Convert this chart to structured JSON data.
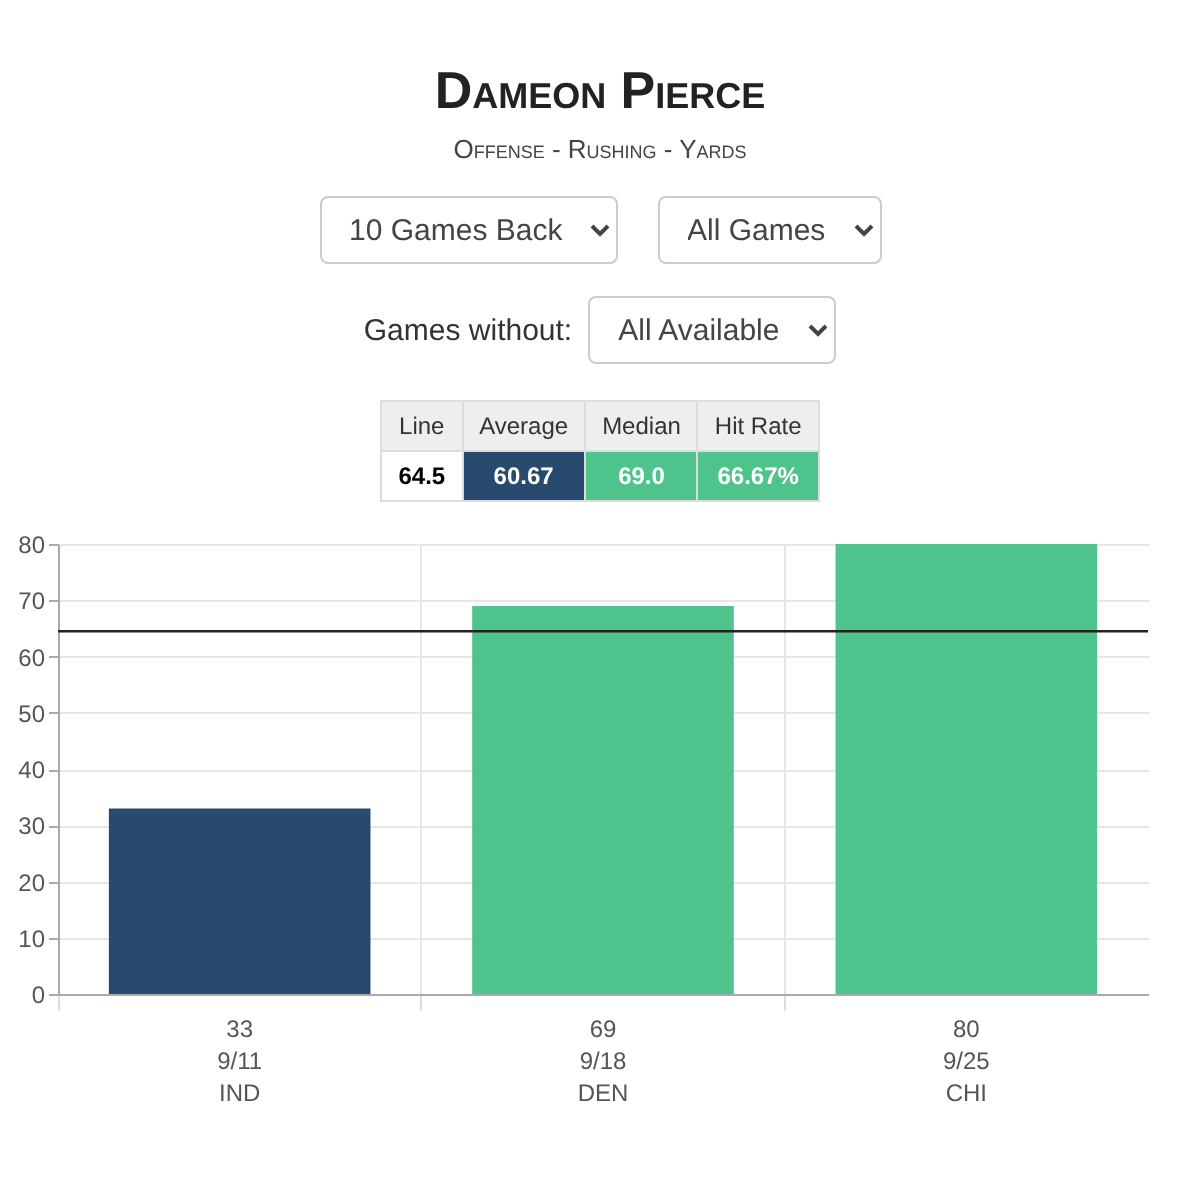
{
  "chart_data": {
    "type": "bar",
    "title": "Dameon Pierce",
    "subtitle": "Offense - Rushing - Yards",
    "annotations": [
      "10 Games Back",
      "All Games",
      "Games without:",
      "All Available",
      "Line",
      "Average",
      "Median",
      "Hit Rate",
      "64.5",
      "60.67",
      "69.0",
      "66.67%"
    ],
    "categories": [
      "9/11\nIND",
      "9/18\nDEN",
      "9/25\nCHI"
    ],
    "values": [
      33,
      69,
      80
    ],
    "colors": [
      "#274a6e",
      "#4ec48c",
      "#4ec48c"
    ],
    "data_labels": true,
    "ylim": [
      0,
      80
    ],
    "yticks": [
      0,
      10,
      20,
      30,
      40,
      50,
      60,
      70,
      80
    ],
    "grid": true,
    "ref_lines": [
      {
        "axis": "y",
        "value": 64.5,
        "color": "#222222"
      }
    ]
  }
}
